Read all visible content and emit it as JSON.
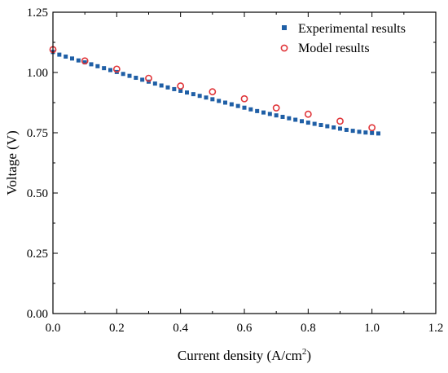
{
  "chart_data": {
    "type": "scatter",
    "title": "",
    "xlabel": "Current density (A/cm",
    "xlabel_sup": "2",
    "xlabel_end": ")",
    "ylabel": "Voltage (V)",
    "xlim": [
      0.0,
      1.2
    ],
    "ylim": [
      0.0,
      1.25
    ],
    "xticks": [
      "0.0",
      "0.2",
      "0.4",
      "0.6",
      "0.8",
      "1.0",
      "1.2"
    ],
    "xtick_values": [
      0.0,
      0.2,
      0.4,
      0.6,
      0.8,
      1.0,
      1.2
    ],
    "yticks": [
      "0.00",
      "0.25",
      "0.50",
      "0.75",
      "1.00",
      "1.25"
    ],
    "ytick_values": [
      0.0,
      0.25,
      0.5,
      0.75,
      1.0,
      1.25
    ],
    "grid": false,
    "legend_position": "top-right",
    "series": [
      {
        "name": "Experimental results",
        "marker": "square",
        "color": "#1f5fa6",
        "x": [
          0.0,
          0.02,
          0.04,
          0.06,
          0.08,
          0.1,
          0.12,
          0.14,
          0.16,
          0.18,
          0.2,
          0.22,
          0.24,
          0.26,
          0.28,
          0.3,
          0.32,
          0.34,
          0.36,
          0.38,
          0.4,
          0.42,
          0.44,
          0.46,
          0.48,
          0.5,
          0.52,
          0.54,
          0.56,
          0.58,
          0.6,
          0.62,
          0.64,
          0.66,
          0.68,
          0.7,
          0.72,
          0.74,
          0.76,
          0.78,
          0.8,
          0.82,
          0.84,
          0.86,
          0.88,
          0.9,
          0.92,
          0.94,
          0.96,
          0.98,
          1.0,
          1.02
        ],
        "y": [
          1.085,
          1.074,
          1.066,
          1.058,
          1.05,
          1.042,
          1.034,
          1.026,
          1.018,
          1.01,
          1.002,
          0.994,
          0.986,
          0.978,
          0.97,
          0.962,
          0.954,
          0.946,
          0.938,
          0.931,
          0.924,
          0.917,
          0.91,
          0.903,
          0.896,
          0.889,
          0.882,
          0.875,
          0.868,
          0.861,
          0.854,
          0.847,
          0.84,
          0.834,
          0.828,
          0.822,
          0.816,
          0.81,
          0.804,
          0.798,
          0.792,
          0.787,
          0.782,
          0.777,
          0.772,
          0.767,
          0.762,
          0.758,
          0.754,
          0.751,
          0.749,
          0.747
        ]
      },
      {
        "name": "Model results",
        "marker": "circle",
        "color": "#e0363a",
        "x": [
          0.0,
          0.1,
          0.2,
          0.3,
          0.4,
          0.5,
          0.6,
          0.7,
          0.8,
          0.9,
          1.0
        ],
        "y": [
          1.095,
          1.048,
          1.014,
          0.976,
          0.944,
          0.92,
          0.891,
          0.853,
          0.827,
          0.798,
          0.771
        ]
      }
    ]
  }
}
